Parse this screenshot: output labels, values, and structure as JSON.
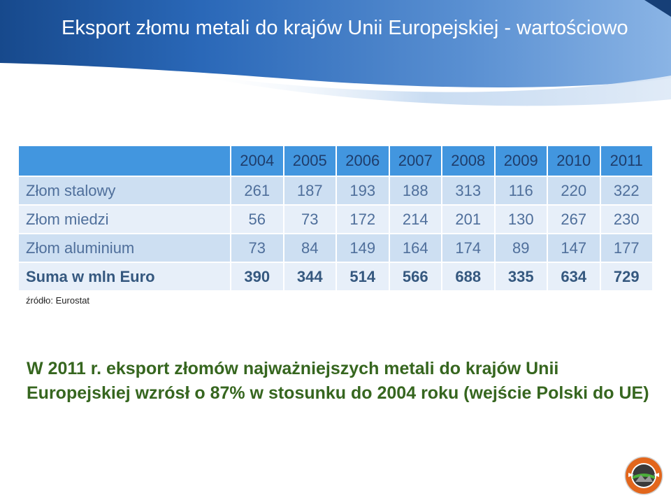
{
  "slide": {
    "title": "Eksport złomu metali do krajów Unii Europejskiej - wartościowo",
    "note_lines": [
      "W 2011 r. eksport złomów najważniejszych metali do krajów Unii",
      "Europejskiej wzrósł o 87% w stosunku do 2004 roku (wejście Polski do UE)"
    ],
    "logo_icon": "company-logo-icon"
  },
  "chart_data": {
    "type": "table",
    "columns": [
      "2004",
      "2005",
      "2006",
      "2007",
      "2008",
      "2009",
      "2010",
      "2011"
    ],
    "rows": [
      {
        "label": "Złom stalowy",
        "values": [
          261,
          187,
          193,
          188,
          313,
          116,
          220,
          322
        ]
      },
      {
        "label": "Złom miedzi",
        "values": [
          56,
          73,
          172,
          214,
          201,
          130,
          267,
          230
        ]
      },
      {
        "label": "Złom aluminium",
        "values": [
          73,
          84,
          149,
          164,
          174,
          89,
          147,
          177
        ]
      },
      {
        "label": "Suma w mln Euro",
        "values": [
          390,
          344,
          514,
          566,
          688,
          335,
          634,
          729
        ],
        "is_total": true
      }
    ],
    "source": "źródło: Eurostat"
  },
  "colors": {
    "title_text": "#ffffff",
    "header_banner": "#2a68b8",
    "table_header_bg": "#4296df",
    "table_header_text": "#1f3d6b",
    "row_band_a": "#cddff2",
    "row_band_b": "#e7eff9",
    "body_text": "#4f6f9b",
    "total_text": "#35587f",
    "note_text": "#36661f"
  }
}
